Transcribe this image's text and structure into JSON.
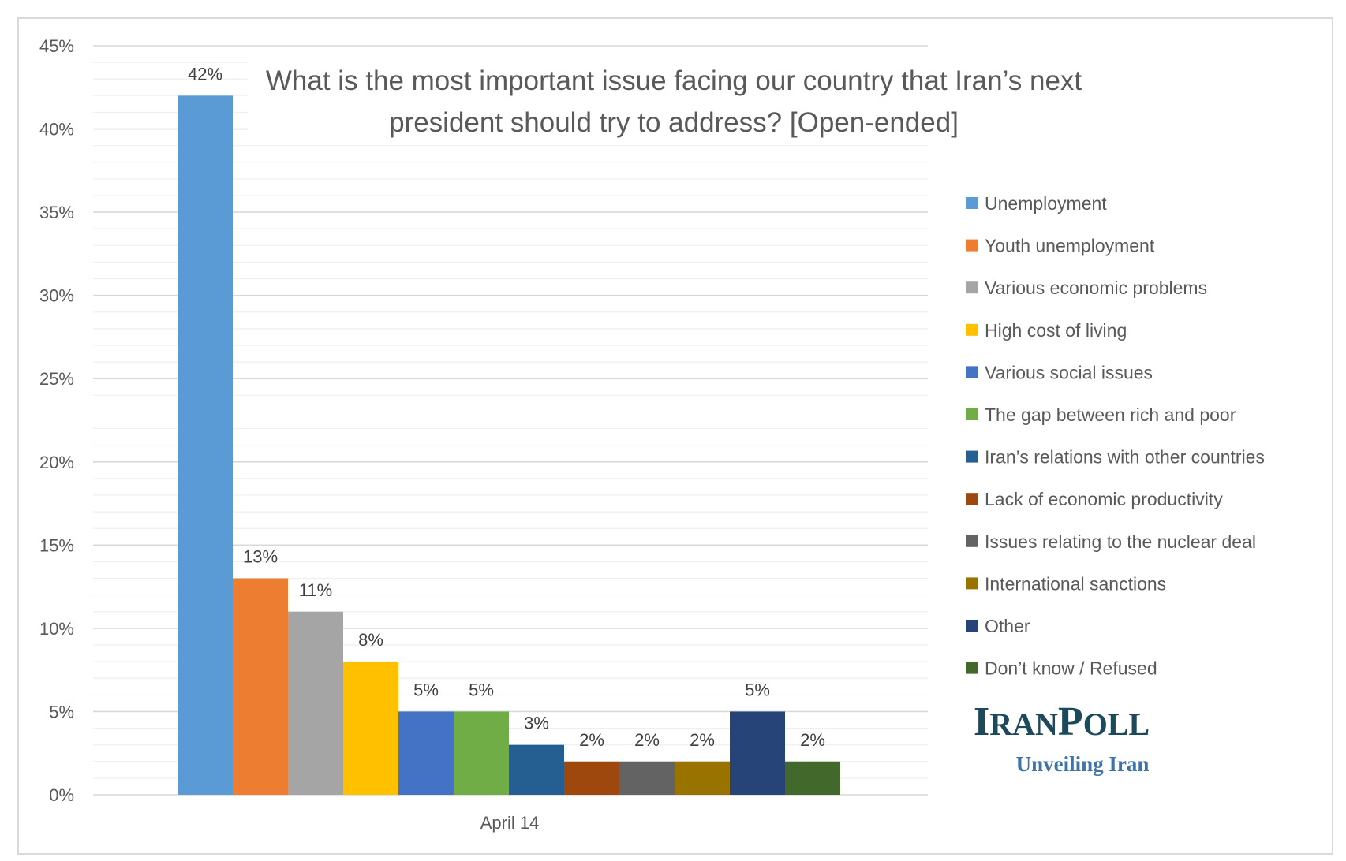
{
  "chart_data": {
    "type": "bar",
    "title": "What is the most important issue facing our country that Iran’s next president should try to address? [Open-ended]",
    "title_lines": [
      "What is the most important issue facing our country that Iran’s next",
      "president should try to address? [Open-ended]"
    ],
    "categories": [
      "April 14"
    ],
    "series": [
      {
        "name": "Unemployment",
        "values": [
          42
        ],
        "label": "42%",
        "color": "#5b9bd5"
      },
      {
        "name": "Youth unemployment",
        "values": [
          13
        ],
        "label": "13%",
        "color": "#ed7d31"
      },
      {
        "name": "Various economic problems",
        "values": [
          11
        ],
        "label": "11%",
        "color": "#a5a5a5"
      },
      {
        "name": "High cost of living",
        "values": [
          8
        ],
        "label": "8%",
        "color": "#ffc000"
      },
      {
        "name": "Various social issues",
        "values": [
          5
        ],
        "label": "5%",
        "color": "#4472c4"
      },
      {
        "name": "The gap between rich and poor",
        "values": [
          5
        ],
        "label": "5%",
        "color": "#70ad47"
      },
      {
        "name": "Iran’s relations with other countries",
        "values": [
          3
        ],
        "label": "3%",
        "color": "#255e91"
      },
      {
        "name": "Lack of economic productivity",
        "values": [
          2
        ],
        "label": "2%",
        "color": "#9e480e"
      },
      {
        "name": "Issues relating to the nuclear deal",
        "values": [
          2
        ],
        "label": "2%",
        "color": "#636363"
      },
      {
        "name": "International sanctions",
        "values": [
          2
        ],
        "label": "2%",
        "color": "#997300"
      },
      {
        "name": "Other",
        "values": [
          5
        ],
        "label": "5%",
        "color": "#264478"
      },
      {
        "name": "Don’t know / Refused",
        "values": [
          2
        ],
        "label": "2%",
        "color": "#43682b"
      }
    ],
    "ylim": [
      0,
      45
    ],
    "yticks": [
      0,
      5,
      10,
      15,
      20,
      25,
      30,
      35,
      40,
      45
    ],
    "ytick_labels": [
      "0%",
      "5%",
      "10%",
      "15%",
      "20%",
      "25%",
      "30%",
      "35%",
      "40%",
      "45%"
    ],
    "xlabel": "",
    "ylabel": "",
    "grid": true,
    "legend_position": "right"
  },
  "logo": {
    "name": "IRANPOLL",
    "tagline": "Unveiling Iran"
  }
}
